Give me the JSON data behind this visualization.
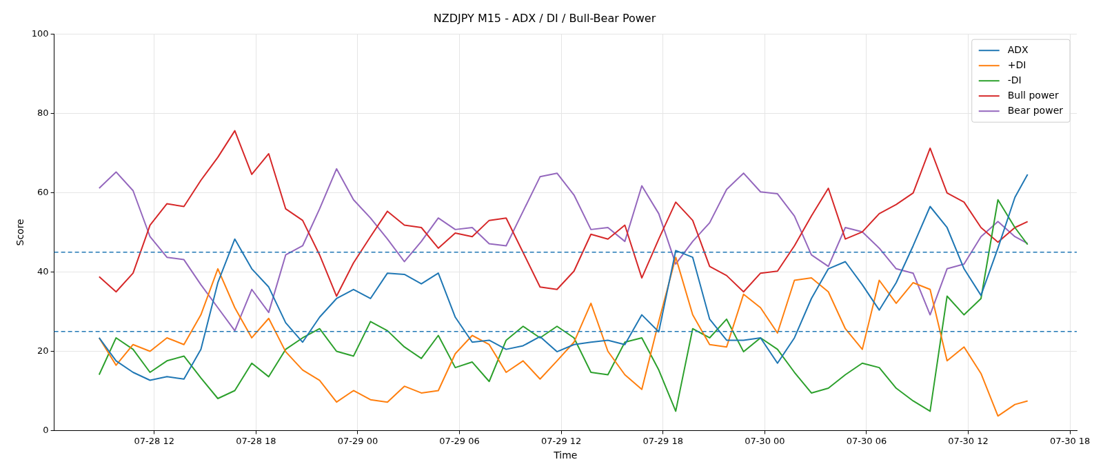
{
  "chart_data": {
    "type": "line",
    "title": "NZDJPY M15 - ADX / DI / Bull-Bear Power",
    "xlabel": "Time",
    "ylabel": "Score",
    "x": [
      "--07-28T08:45",
      "--07-28T09:45",
      "--07-28T10:45",
      "--07-28T11:45",
      "--07-28T12:45",
      "--07-28T13:45",
      "--07-28T14:45",
      "--07-28T15:45",
      "--07-28T16:45",
      "--07-28T17:45",
      "--07-28T18:45",
      "--07-28T19:45",
      "--07-28T20:45",
      "--07-28T21:45",
      "--07-28T22:45",
      "--07-28T23:45",
      "--07-29T00:45",
      "--07-29T01:45",
      "--07-29T02:45",
      "--07-29T03:45",
      "--07-29T04:45",
      "--07-29T05:45",
      "--07-29T06:45",
      "--07-29T07:45",
      "--07-29T08:45",
      "--07-29T09:45",
      "--07-29T10:45",
      "--07-29T11:45",
      "--07-29T12:45",
      "--07-29T13:45",
      "--07-29T14:45",
      "--07-29T15:45",
      "--07-29T16:45",
      "--07-29T17:45",
      "--07-29T18:45",
      "--07-29T19:45",
      "--07-29T20:45",
      "--07-29T21:45",
      "--07-29T22:45",
      "--07-29T23:45",
      "--07-30T00:45",
      "--07-30T01:45",
      "--07-30T02:45",
      "--07-30T03:45",
      "--07-30T04:45",
      "--07-30T05:45",
      "--07-30T06:45",
      "--07-30T07:45",
      "--07-30T08:45",
      "--07-30T09:45",
      "--07-30T10:45",
      "--07-30T11:45",
      "--07-30T12:45",
      "--07-30T13:45",
      "--07-30T14:45",
      "--07-30T15:30"
    ],
    "series": [
      {
        "name": "ADX",
        "color": "#1f77b4",
        "values": [
          23.4,
          17.6,
          14.7,
          12.7,
          13.6,
          13,
          20.5,
          37.3,
          48.3,
          40.8,
          36.2,
          27.2,
          22.3,
          28.6,
          33.3,
          35.6,
          33.3,
          39.7,
          39.4,
          37,
          39.7,
          28.6,
          22.3,
          22.8,
          20.5,
          21.4,
          23.7,
          19.9,
          21.7,
          22.3,
          22.8,
          21.7,
          29.2,
          24.9,
          45.4,
          43.7,
          28.1,
          22.8,
          22.8,
          23.4,
          17,
          23.4,
          33.3,
          40.8,
          42.6,
          36.8,
          30.4,
          37.3,
          46.6,
          56.5,
          51.2,
          40.8,
          34.1,
          46,
          58.8,
          64.6
        ]
      },
      {
        "name": "+DI",
        "color": "#ff7f0e",
        "values": [
          23.4,
          16.5,
          21.7,
          20,
          23.4,
          21.7,
          29.2,
          40.8,
          31,
          23.4,
          28.3,
          19.9,
          15.3,
          12.7,
          7.2,
          10.1,
          7.8,
          7.2,
          11.2,
          9.5,
          10.1,
          19.4,
          24,
          21.7,
          14.7,
          17.6,
          13,
          17.6,
          22.3,
          32.1,
          20,
          14.1,
          10.4,
          27.5,
          43.7,
          29.2,
          21.7,
          21.1,
          34.4,
          31,
          24.6,
          37.9,
          38.5,
          35,
          25.7,
          20.5,
          37.9,
          32.1,
          37.3,
          35.6,
          17.6,
          21.1,
          14.4,
          3.7,
          6.6,
          7.5
        ]
      },
      {
        "name": "-DI",
        "color": "#2ca02c",
        "values": [
          14.1,
          23.4,
          20.5,
          14.7,
          17.6,
          18.8,
          13.3,
          8.1,
          10.1,
          17,
          13.6,
          20.5,
          23.4,
          25.7,
          20,
          18.8,
          27.5,
          25.2,
          21.1,
          18.2,
          24,
          15.9,
          17.3,
          12.4,
          22.8,
          26.3,
          23.4,
          26.3,
          23.4,
          14.7,
          14.1,
          22.3,
          23.4,
          15.3,
          4.9,
          25.7,
          23.4,
          28.1,
          19.9,
          23.4,
          20.5,
          14.7,
          9.5,
          10.7,
          14.1,
          17,
          15.9,
          10.7,
          7.5,
          4.9,
          33.9,
          29.2,
          33.3,
          58.2,
          51.2,
          46.9
        ]
      },
      {
        "name": "Bull power",
        "color": "#d62728",
        "values": [
          38.8,
          35,
          39.7,
          51.8,
          57.2,
          56.5,
          63.1,
          68.9,
          75.6,
          64.6,
          69.8,
          55.9,
          53,
          44.3,
          33.9,
          42.3,
          48.9,
          55.3,
          51.8,
          51.2,
          46,
          49.8,
          48.9,
          53,
          53.6,
          44.9,
          36.2,
          35.6,
          40.2,
          49.5,
          48.3,
          51.8,
          38.5,
          48.3,
          57.6,
          53,
          41.4,
          39.1,
          35,
          39.7,
          40.2,
          46.6,
          54.1,
          61.1,
          48.3,
          50.1,
          54.7,
          57,
          59.9,
          71.2,
          59.9,
          57.6,
          51.2,
          47.5,
          51.2,
          52.7
        ]
      },
      {
        "name": "Bear power",
        "color": "#9467bd",
        "values": [
          61.1,
          65.2,
          60.5,
          48.9,
          43.7,
          43.1,
          36.8,
          31,
          25.2,
          35.6,
          29.8,
          44.3,
          46.6,
          55.9,
          66,
          58.2,
          53.6,
          48.3,
          42.6,
          47.7,
          53.6,
          50.7,
          51.2,
          47.1,
          46.6,
          55.3,
          64,
          64.9,
          59.4,
          50.7,
          51.2,
          47.7,
          61.7,
          54.7,
          42,
          47.7,
          52.4,
          60.8,
          64.9,
          60.2,
          59.7,
          54.1,
          44.3,
          41.4,
          51.2,
          50.1,
          46,
          40.8,
          39.7,
          29.2,
          40.8,
          42,
          48.9,
          52.7,
          48.9,
          47.2
        ]
      }
    ],
    "xlim": [
      "--07-28T06:06",
      "--07-30T18:24"
    ],
    "xticks": [
      {
        "value": "--07-28T12:00",
        "label": "07-28 12"
      },
      {
        "value": "--07-28T18:00",
        "label": "07-28 18"
      },
      {
        "value": "--07-29T00:00",
        "label": "07-29 00"
      },
      {
        "value": "--07-29T06:00",
        "label": "07-29 06"
      },
      {
        "value": "--07-29T12:00",
        "label": "07-29 12"
      },
      {
        "value": "--07-29T18:00",
        "label": "07-29 18"
      },
      {
        "value": "--07-30T00:00",
        "label": "07-30 00"
      },
      {
        "value": "--07-30T06:00",
        "label": "07-30 06"
      },
      {
        "value": "--07-30T12:00",
        "label": "07-30 12"
      },
      {
        "value": "--07-30T18:00",
        "label": "07-30 18"
      }
    ],
    "ylim": [
      0,
      100
    ],
    "yticks": [
      0,
      20,
      40,
      60,
      80,
      100
    ],
    "ref_lines": [
      {
        "axis": "y",
        "value": 45,
        "color": "#1f77b4",
        "line_style": "dashed"
      },
      {
        "axis": "y",
        "value": 25,
        "color": "#1f77b4",
        "line_style": "dashed"
      }
    ],
    "grid": true,
    "legend": "top right",
    "line_style": "solid",
    "marker": "none"
  }
}
